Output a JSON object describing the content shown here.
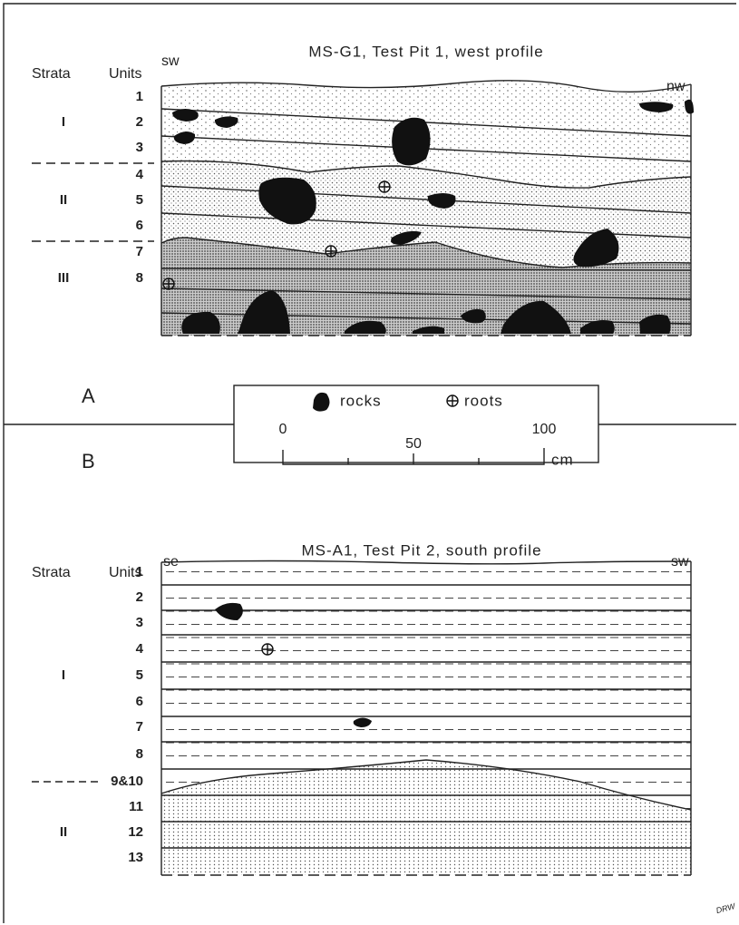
{
  "panel_a": {
    "label": "A",
    "title": "MS-G1, Test Pit 1, west profile",
    "strata_header": "Strata",
    "units_header": "Units",
    "left_direction": "sw",
    "right_direction": "nw",
    "units": [
      "1",
      "2",
      "3",
      "4",
      "5",
      "6",
      "7",
      "8"
    ],
    "strata": [
      "I",
      "II",
      "III"
    ]
  },
  "legend": {
    "rocks": "rocks",
    "roots": "roots",
    "scale_labels": [
      "0",
      "50",
      "100"
    ],
    "scale_unit": "cm"
  },
  "panel_b": {
    "label": "B",
    "title": "MS-A1, Test Pit 2, south profile",
    "strata_header": "Strata",
    "units_header": "Units",
    "left_direction": "se",
    "right_direction": "sw",
    "units": [
      "1",
      "2",
      "3",
      "4",
      "5",
      "6",
      "7",
      "8",
      "9&10",
      "11",
      "12",
      "13"
    ],
    "strata": [
      "I",
      "II"
    ]
  },
  "signature": "DRW"
}
